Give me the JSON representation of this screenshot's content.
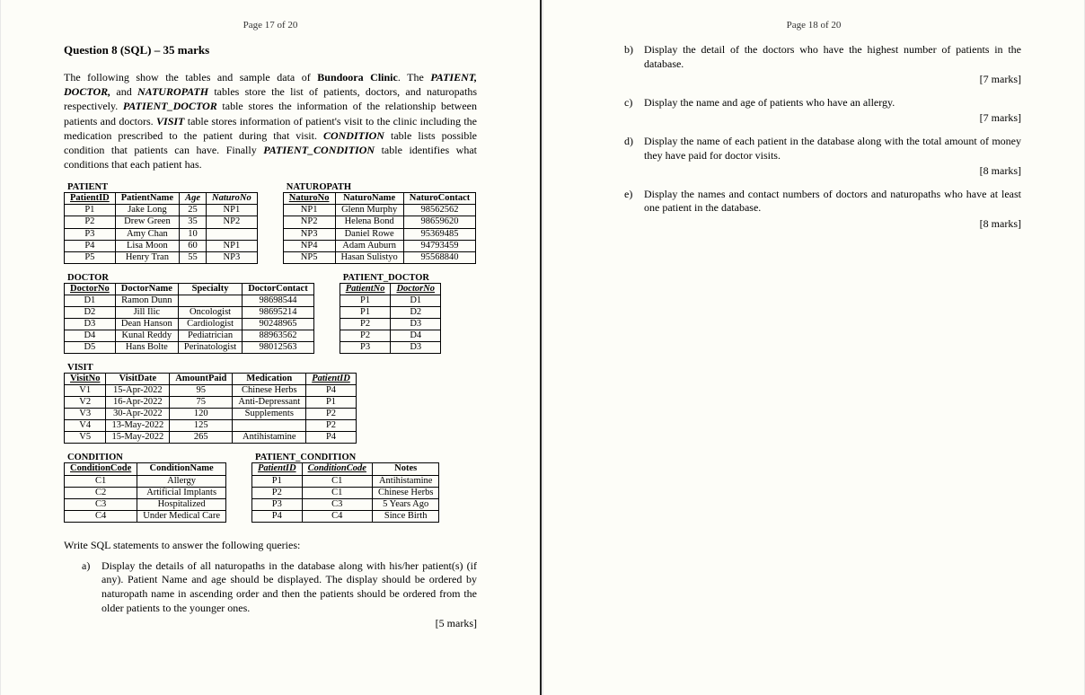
{
  "pageLeft": "Page 17 of 20",
  "pageRight": "Page 18 of 20",
  "questionHeader": "Question 8 (SQL) – 35 marks",
  "intro1a": "The following show the tables and sample data of ",
  "intro1b": "Bundoora Clinic",
  "intro1c": ". The ",
  "intro2a": "PATIENT, DOCTOR,",
  "intro2b": " and ",
  "intro2c": "NATUROPATH",
  "intro2d": " tables store the list of patients, doctors, and naturopaths respectively. ",
  "intro3a": "PATIENT_DOCTOR",
  "intro3b": " table stores the information of the relationship between patients and doctors. ",
  "intro4a": "VISIT",
  "intro4b": " table stores information of patient's visit to the clinic including the medication prescribed to the patient during that visit. ",
  "intro5a": "CONDITION",
  "intro5b": " table lists possible condition that patients can have. Finally ",
  "intro6a": "PATIENT_CONDITION",
  "intro6b": " table identifies what conditions that each patient has.",
  "patient": {
    "title": "PATIENT",
    "headers": [
      "PatientID",
      "PatientName",
      "Age",
      "NaturoNo"
    ],
    "headerStyles": [
      "u",
      "",
      "i",
      "i"
    ],
    "rows": [
      [
        "P1",
        "Jake Long",
        "25",
        "NP1"
      ],
      [
        "P2",
        "Drew Green",
        "35",
        "NP2"
      ],
      [
        "P3",
        "Amy Chan",
        "10",
        ""
      ],
      [
        "P4",
        "Lisa Moon",
        "60",
        "NP1"
      ],
      [
        "P5",
        "Henry Tran",
        "55",
        "NP3"
      ]
    ]
  },
  "naturopath": {
    "title": "NATUROPATH",
    "headers": [
      "NaturoNo",
      "NaturoName",
      "NaturoContact"
    ],
    "headerStyles": [
      "u",
      "",
      ""
    ],
    "rows": [
      [
        "NP1",
        "Glenn Murphy",
        "98562562"
      ],
      [
        "NP2",
        "Helena Bond",
        "98659620"
      ],
      [
        "NP3",
        "Daniel Rowe",
        "95369485"
      ],
      [
        "NP4",
        "Adam Auburn",
        "94793459"
      ],
      [
        "NP5",
        "Hasan Sulistyo",
        "95568840"
      ]
    ]
  },
  "doctor": {
    "title": "DOCTOR",
    "headers": [
      "DoctorNo",
      "DoctorName",
      "Specialty",
      "DoctorContact"
    ],
    "headerStyles": [
      "u",
      "",
      "",
      ""
    ],
    "rows": [
      [
        "D1",
        "Ramon Dunn",
        "",
        "98698544"
      ],
      [
        "D2",
        "Jill Ilic",
        "Oncologist",
        "98695214"
      ],
      [
        "D3",
        "Dean Hanson",
        "Cardiologist",
        "90248965"
      ],
      [
        "D4",
        "Kunal Reddy",
        "Pediatrician",
        "88963562"
      ],
      [
        "D5",
        "Hans Bolte",
        "Perinatologist",
        "98012563"
      ]
    ]
  },
  "patdoc": {
    "title": "PATIENT_DOCTOR",
    "headers": [
      "PatientNo",
      "DoctorNo"
    ],
    "headerStyles": [
      "i u",
      "i u"
    ],
    "rows": [
      [
        "P1",
        "D1"
      ],
      [
        "P1",
        "D2"
      ],
      [
        "P2",
        "D3"
      ],
      [
        "P2",
        "D4"
      ],
      [
        "P3",
        "D3"
      ]
    ]
  },
  "visit": {
    "title": "VISIT",
    "headers": [
      "VisitNo",
      "VisitDate",
      "AmountPaid",
      "Medication",
      "PatientID"
    ],
    "headerStyles": [
      "u",
      "",
      "",
      "",
      "i u"
    ],
    "rows": [
      [
        "V1",
        "15-Apr-2022",
        "95",
        "Chinese Herbs",
        "P4"
      ],
      [
        "V2",
        "16-Apr-2022",
        "75",
        "Anti-Depressant",
        "P1"
      ],
      [
        "V3",
        "30-Apr-2022",
        "120",
        "Supplements",
        "P2"
      ],
      [
        "V4",
        "13-May-2022",
        "125",
        "",
        "P2"
      ],
      [
        "V5",
        "15-May-2022",
        "265",
        "Antihistamine",
        "P4"
      ]
    ]
  },
  "condition": {
    "title": "CONDITION",
    "headers": [
      "ConditionCode",
      "ConditionName"
    ],
    "headerStyles": [
      "u",
      ""
    ],
    "rows": [
      [
        "C1",
        "Allergy"
      ],
      [
        "C2",
        "Artificial Implants"
      ],
      [
        "C3",
        "Hospitalized"
      ],
      [
        "C4",
        "Under Medical Care"
      ]
    ]
  },
  "patcond": {
    "title": "PATIENT_CONDITION",
    "headers": [
      "PatientID",
      "ConditionCode",
      "Notes"
    ],
    "headerStyles": [
      "i u",
      "i u",
      ""
    ],
    "rows": [
      [
        "P1",
        "C1",
        "Antihistamine"
      ],
      [
        "P2",
        "C1",
        "Chinese Herbs"
      ],
      [
        "P3",
        "C3",
        "5 Years Ago"
      ],
      [
        "P4",
        "C4",
        "Since Birth"
      ]
    ]
  },
  "prompt": "Write SQL statements to answer the following queries:",
  "qa": {
    "lab": "a)",
    "text": "Display the details of all naturopaths in the database along with his/her patient(s) (if any). Patient Name and age should be displayed. The display should be ordered by naturopath name in ascending order and then the patients should be ordered from the older patients to the younger ones.",
    "marks": "[5 marks]"
  },
  "qb": {
    "lab": "b)",
    "text": "Display the detail of the doctors who have the highest number of patients in the database.",
    "marks": "[7 marks]"
  },
  "qc": {
    "lab": "c)",
    "text": "Display the name and age of patients who have an allergy.",
    "marks": "[7 marks]"
  },
  "qd": {
    "lab": "d)",
    "text": "Display the name of each patient in the database along with the total amount of money they have paid for doctor visits.",
    "marks": "[8 marks]"
  },
  "qe": {
    "lab": "e)",
    "text": "Display the names and contact numbers of doctors and naturopaths who have at least one patient in the database.",
    "marks": "[8 marks]"
  }
}
